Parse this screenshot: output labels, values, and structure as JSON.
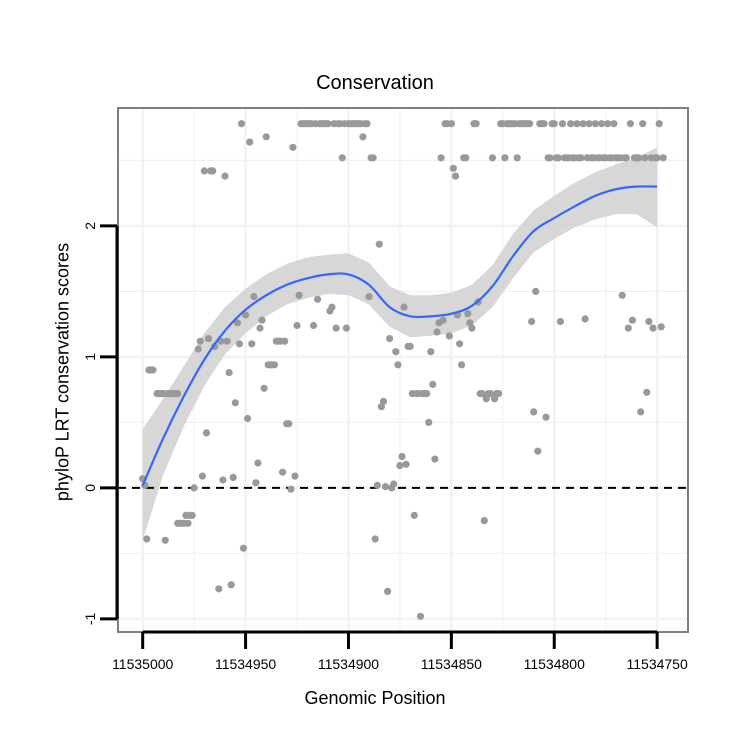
{
  "chart_data": {
    "type": "scatter",
    "title": "Conservation",
    "xlabel": "Genomic Position",
    "ylabel": "phyloP LRT conservation scores",
    "x_reversed": true,
    "xlim": [
      11535012,
      11534735
    ],
    "ylim": [
      -1.1,
      2.9
    ],
    "xticks": [
      11535000,
      11534950,
      11534900,
      11534850,
      11534800,
      11534750
    ],
    "xtick_labels": [
      "11535000",
      "11534950",
      "11534900",
      "11534850",
      "11534800",
      "11534750"
    ],
    "yticks": [
      -1,
      0,
      1,
      2
    ],
    "ytick_labels": [
      "-1",
      "0",
      "1",
      "2"
    ],
    "grid": true,
    "reference_line": {
      "y": 0,
      "style": "dashed",
      "color": "#000000"
    },
    "colors": {
      "points": "#999999",
      "smooth_line": "#3366FF",
      "confidence_band": "#D3D3D3",
      "panel_border": "#7F7F7F",
      "grid": "#F2F2F2"
    },
    "points": [
      [
        11535000,
        0.07
      ],
      [
        11534999,
        0.02
      ],
      [
        11534998,
        -0.39
      ],
      [
        11534997,
        0.9
      ],
      [
        11534996,
        0.9
      ],
      [
        11534995,
        0.9
      ],
      [
        11534993,
        0.72
      ],
      [
        11534992,
        0.72
      ],
      [
        11534991,
        0.72
      ],
      [
        11534990,
        0.72
      ],
      [
        11534989,
        -0.4
      ],
      [
        11534988,
        0.72
      ],
      [
        11534987,
        0.72
      ],
      [
        11534986,
        0.72
      ],
      [
        11534985,
        0.72
      ],
      [
        11534984,
        0.72
      ],
      [
        11534983,
        0.72
      ],
      [
        11534983,
        -0.27
      ],
      [
        11534982,
        -0.27
      ],
      [
        11534981,
        -0.27
      ],
      [
        11534980,
        -0.27
      ],
      [
        11534979,
        -0.21
      ],
      [
        11534978,
        -0.27
      ],
      [
        11534977,
        -0.21
      ],
      [
        11534976,
        -0.21
      ],
      [
        11534975,
        0.0
      ],
      [
        11534973,
        1.06
      ],
      [
        11534972,
        1.12
      ],
      [
        11534971,
        0.09
      ],
      [
        11534970,
        2.42
      ],
      [
        11534969,
        0.42
      ],
      [
        11534968,
        1.14
      ],
      [
        11534967,
        2.42
      ],
      [
        11534966,
        2.42
      ],
      [
        11534965,
        1.08
      ],
      [
        11534963,
        -0.77
      ],
      [
        11534962,
        1.12
      ],
      [
        11534961,
        0.06
      ],
      [
        11534960,
        2.38
      ],
      [
        11534959,
        1.12
      ],
      [
        11534958,
        0.88
      ],
      [
        11534957,
        -0.74
      ],
      [
        11534956,
        0.08
      ],
      [
        11534955,
        0.65
      ],
      [
        11534954,
        1.26
      ],
      [
        11534953,
        1.1
      ],
      [
        11534952,
        2.78
      ],
      [
        11534951,
        -0.46
      ],
      [
        11534950,
        1.32
      ],
      [
        11534949,
        0.53
      ],
      [
        11534948,
        2.64
      ],
      [
        11534947,
        1.1
      ],
      [
        11534946,
        1.46
      ],
      [
        11534945,
        0.04
      ],
      [
        11534944,
        0.19
      ],
      [
        11534943,
        1.22
      ],
      [
        11534942,
        1.28
      ],
      [
        11534941,
        0.76
      ],
      [
        11534940,
        2.68
      ],
      [
        11534939,
        0.94
      ],
      [
        11534938,
        0.94
      ],
      [
        11534937,
        0.94
      ],
      [
        11534936,
        0.94
      ],
      [
        11534935,
        1.12
      ],
      [
        11534934,
        1.12
      ],
      [
        11534933,
        1.12
      ],
      [
        11534932,
        0.12
      ],
      [
        11534931,
        1.12
      ],
      [
        11534930,
        0.49
      ],
      [
        11534929,
        0.49
      ],
      [
        11534928,
        -0.01
      ],
      [
        11534927,
        2.6
      ],
      [
        11534926,
        0.09
      ],
      [
        11534925,
        1.24
      ],
      [
        11534924,
        1.47
      ],
      [
        11534923,
        2.78
      ],
      [
        11534922,
        2.78
      ],
      [
        11534921,
        2.78
      ],
      [
        11534920,
        2.78
      ],
      [
        11534919,
        2.78
      ],
      [
        11534918,
        2.78
      ],
      [
        11534917,
        1.24
      ],
      [
        11534916,
        2.78
      ],
      [
        11534915,
        1.44
      ],
      [
        11534914,
        2.78
      ],
      [
        11534913,
        2.78
      ],
      [
        11534912,
        2.78
      ],
      [
        11534911,
        2.78
      ],
      [
        11534910,
        2.78
      ],
      [
        11534909,
        1.35
      ],
      [
        11534908,
        1.38
      ],
      [
        11534907,
        2.78
      ],
      [
        11534906,
        1.22
      ],
      [
        11534905,
        2.78
      ],
      [
        11534904,
        2.78
      ],
      [
        11534903,
        2.52
      ],
      [
        11534902,
        2.78
      ],
      [
        11534901,
        1.22
      ],
      [
        11534900,
        2.78
      ],
      [
        11534899,
        2.78
      ],
      [
        11534898,
        2.78
      ],
      [
        11534897,
        2.78
      ],
      [
        11534896,
        2.78
      ],
      [
        11534895,
        2.78
      ],
      [
        11534894,
        2.78
      ],
      [
        11534893,
        2.68
      ],
      [
        11534892,
        2.78
      ],
      [
        11534891,
        2.78
      ],
      [
        11534890,
        1.46
      ],
      [
        11534889,
        2.52
      ],
      [
        11534888,
        2.52
      ],
      [
        11534887,
        -0.39
      ],
      [
        11534886,
        0.02
      ],
      [
        11534885,
        1.86
      ],
      [
        11534884,
        0.62
      ],
      [
        11534883,
        0.66
      ],
      [
        11534882,
        0.01
      ],
      [
        11534881,
        -0.79
      ],
      [
        11534880,
        1.14
      ],
      [
        11534879,
        0.0
      ],
      [
        11534878,
        0.03
      ],
      [
        11534877,
        1.04
      ],
      [
        11534876,
        0.94
      ],
      [
        11534875,
        0.17
      ],
      [
        11534874,
        0.24
      ],
      [
        11534873,
        1.38
      ],
      [
        11534872,
        0.18
      ],
      [
        11534871,
        1.08
      ],
      [
        11534870,
        1.08
      ],
      [
        11534869,
        0.72
      ],
      [
        11534868,
        -0.21
      ],
      [
        11534867,
        0.72
      ],
      [
        11534866,
        0.72
      ],
      [
        11534865,
        -0.98
      ],
      [
        11534864,
        0.72
      ],
      [
        11534863,
        0.72
      ],
      [
        11534862,
        0.72
      ],
      [
        11534861,
        0.5
      ],
      [
        11534860,
        1.04
      ],
      [
        11534859,
        0.79
      ],
      [
        11534858,
        0.22
      ],
      [
        11534857,
        1.19
      ],
      [
        11534856,
        1.26
      ],
      [
        11534855,
        2.52
      ],
      [
        11534854,
        1.28
      ],
      [
        11534853,
        2.78
      ],
      [
        11534852,
        2.78
      ],
      [
        11534851,
        1.16
      ],
      [
        11534850,
        2.78
      ],
      [
        11534849,
        2.44
      ],
      [
        11534848,
        2.38
      ],
      [
        11534847,
        1.32
      ],
      [
        11534846,
        1.1
      ],
      [
        11534845,
        0.94
      ],
      [
        11534844,
        2.52
      ],
      [
        11534843,
        2.52
      ],
      [
        11534842,
        1.33
      ],
      [
        11534841,
        1.26
      ],
      [
        11534840,
        1.22
      ],
      [
        11534839,
        2.78
      ],
      [
        11534838,
        2.78
      ],
      [
        11534837,
        1.42
      ],
      [
        11534836,
        0.72
      ],
      [
        11534835,
        0.72
      ],
      [
        11534834,
        -0.25
      ],
      [
        11534833,
        0.68
      ],
      [
        11534832,
        0.72
      ],
      [
        11534831,
        0.72
      ],
      [
        11534830,
        2.52
      ],
      [
        11534829,
        0.68
      ],
      [
        11534828,
        0.72
      ],
      [
        11534827,
        0.72
      ],
      [
        11534826,
        2.78
      ],
      [
        11534825,
        2.78
      ],
      [
        11534824,
        2.52
      ],
      [
        11534823,
        2.78
      ],
      [
        11534822,
        2.78
      ],
      [
        11534821,
        2.78
      ],
      [
        11534820,
        2.78
      ],
      [
        11534819,
        2.78
      ],
      [
        11534818,
        2.52
      ],
      [
        11534817,
        2.78
      ],
      [
        11534816,
        2.78
      ],
      [
        11534815,
        2.78
      ],
      [
        11534814,
        2.78
      ],
      [
        11534813,
        2.78
      ],
      [
        11534812,
        2.78
      ],
      [
        11534811,
        1.27
      ],
      [
        11534810,
        0.58
      ],
      [
        11534809,
        1.5
      ],
      [
        11534808,
        0.28
      ],
      [
        11534807,
        2.78
      ],
      [
        11534806,
        2.78
      ],
      [
        11534805,
        2.78
      ],
      [
        11534804,
        0.54
      ],
      [
        11534803,
        2.52
      ],
      [
        11534802,
        2.52
      ],
      [
        11534801,
        2.78
      ],
      [
        11534800,
        2.78
      ],
      [
        11534799,
        2.52
      ],
      [
        11534798,
        2.52
      ],
      [
        11534797,
        1.27
      ],
      [
        11534796,
        2.78
      ],
      [
        11534795,
        2.52
      ],
      [
        11534794,
        2.52
      ],
      [
        11534793,
        2.52
      ],
      [
        11534792,
        2.78
      ],
      [
        11534791,
        2.52
      ],
      [
        11534790,
        2.52
      ],
      [
        11534789,
        2.78
      ],
      [
        11534788,
        2.52
      ],
      [
        11534787,
        2.52
      ],
      [
        11534786,
        2.78
      ],
      [
        11534785,
        1.29
      ],
      [
        11534784,
        2.52
      ],
      [
        11534783,
        2.78
      ],
      [
        11534782,
        2.52
      ],
      [
        11534781,
        2.52
      ],
      [
        11534780,
        2.78
      ],
      [
        11534779,
        2.52
      ],
      [
        11534778,
        2.52
      ],
      [
        11534777,
        2.78
      ],
      [
        11534776,
        2.52
      ],
      [
        11534775,
        2.52
      ],
      [
        11534774,
        2.78
      ],
      [
        11534773,
        2.52
      ],
      [
        11534772,
        2.52
      ],
      [
        11534771,
        2.78
      ],
      [
        11534770,
        2.52
      ],
      [
        11534769,
        2.52
      ],
      [
        11534768,
        2.52
      ],
      [
        11534767,
        1.47
      ],
      [
        11534766,
        2.52
      ],
      [
        11534765,
        2.52
      ],
      [
        11534764,
        1.22
      ],
      [
        11534763,
        2.78
      ],
      [
        11534762,
        1.28
      ],
      [
        11534761,
        2.52
      ],
      [
        11534760,
        2.52
      ],
      [
        11534759,
        2.52
      ],
      [
        11534758,
        0.58
      ],
      [
        11534757,
        2.78
      ],
      [
        11534756,
        2.52
      ],
      [
        11534755,
        0.73
      ],
      [
        11534754,
        1.27
      ],
      [
        11534753,
        2.52
      ],
      [
        11534752,
        1.22
      ],
      [
        11534751,
        2.52
      ],
      [
        11534750,
        2.52
      ],
      [
        11534749,
        2.78
      ],
      [
        11534748,
        1.23
      ],
      [
        11534747,
        2.52
      ]
    ],
    "smooth": [
      {
        "x": 11535000,
        "y": 0.02,
        "lo": -0.4,
        "hi": 0.45
      },
      {
        "x": 11534990,
        "y": 0.38,
        "lo": 0.1,
        "hi": 0.68
      },
      {
        "x": 11534980,
        "y": 0.7,
        "lo": 0.47,
        "hi": 0.93
      },
      {
        "x": 11534970,
        "y": 0.98,
        "lo": 0.78,
        "hi": 1.18
      },
      {
        "x": 11534960,
        "y": 1.2,
        "lo": 1.02,
        "hi": 1.38
      },
      {
        "x": 11534950,
        "y": 1.36,
        "lo": 1.18,
        "hi": 1.52
      },
      {
        "x": 11534940,
        "y": 1.47,
        "lo": 1.31,
        "hi": 1.63
      },
      {
        "x": 11534930,
        "y": 1.55,
        "lo": 1.4,
        "hi": 1.71
      },
      {
        "x": 11534920,
        "y": 1.6,
        "lo": 1.45,
        "hi": 1.76
      },
      {
        "x": 11534910,
        "y": 1.63,
        "lo": 1.48,
        "hi": 1.78
      },
      {
        "x": 11534900,
        "y": 1.63,
        "lo": 1.47,
        "hi": 1.79
      },
      {
        "x": 11534890,
        "y": 1.55,
        "lo": 1.4,
        "hi": 1.72
      },
      {
        "x": 11534880,
        "y": 1.38,
        "lo": 1.23,
        "hi": 1.54
      },
      {
        "x": 11534870,
        "y": 1.31,
        "lo": 1.15,
        "hi": 1.47
      },
      {
        "x": 11534860,
        "y": 1.31,
        "lo": 1.16,
        "hi": 1.47
      },
      {
        "x": 11534850,
        "y": 1.33,
        "lo": 1.18,
        "hi": 1.49
      },
      {
        "x": 11534840,
        "y": 1.39,
        "lo": 1.24,
        "hi": 1.55
      },
      {
        "x": 11534830,
        "y": 1.54,
        "lo": 1.38,
        "hi": 1.7
      },
      {
        "x": 11534820,
        "y": 1.77,
        "lo": 1.6,
        "hi": 1.94
      },
      {
        "x": 11534810,
        "y": 1.96,
        "lo": 1.8,
        "hi": 2.12
      },
      {
        "x": 11534800,
        "y": 2.06,
        "lo": 1.9,
        "hi": 2.23
      },
      {
        "x": 11534790,
        "y": 2.15,
        "lo": 1.99,
        "hi": 2.33
      },
      {
        "x": 11534780,
        "y": 2.23,
        "lo": 2.05,
        "hi": 2.41
      },
      {
        "x": 11534770,
        "y": 2.28,
        "lo": 2.09,
        "hi": 2.47
      },
      {
        "x": 11534760,
        "y": 2.3,
        "lo": 2.09,
        "hi": 2.52
      },
      {
        "x": 11534750,
        "y": 2.3,
        "lo": 1.99,
        "hi": 2.6
      }
    ]
  }
}
